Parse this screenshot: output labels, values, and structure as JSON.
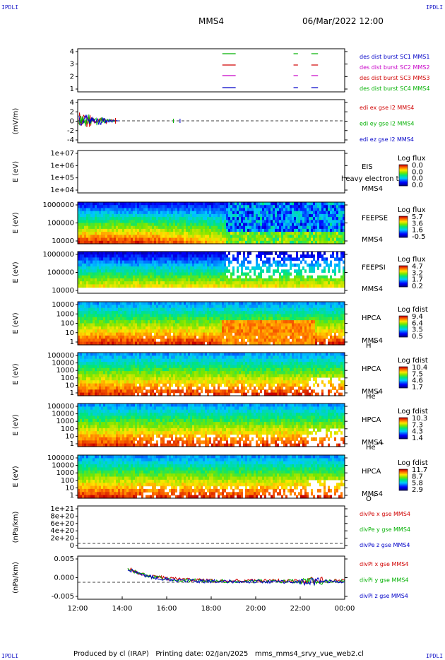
{
  "header": {
    "corner_label": "IPDLI",
    "spacecraft": "MMS4",
    "datetime": "06/Mar/2022 12:00"
  },
  "footer": {
    "text": "Produced by cl (IRAP)   Printing date: 02/Jan/2025   mms_mms4_srvy_vue_web2.cl"
  },
  "colors": {
    "red": "#d00000",
    "green": "#00b000",
    "blue": "#0000c8",
    "magenta": "#c800c8",
    "text_blue": "#0000a0"
  },
  "chart_data": {
    "type": "heatmap",
    "x_axis": {
      "ticks": [
        "12:00",
        "14:00",
        "16:00",
        "18:00",
        "20:00",
        "22:00",
        "00:00"
      ],
      "range_hours": [
        12,
        24
      ]
    },
    "panels": [
      {
        "id": "burst",
        "type": "line",
        "ylabel": "",
        "yticks": [
          "4",
          "3",
          "2",
          "1"
        ],
        "legend": [
          {
            "text": "des dist burst SC1 MMS1",
            "color": "#0000c8"
          },
          {
            "text": "des dist burst SC2 MMS2",
            "color": "#c800c8"
          },
          {
            "text": "des dist burst SC3 MMS3",
            "color": "#d00000"
          },
          {
            "text": "des dist burst SC4 MMS4",
            "color": "#00b000"
          }
        ],
        "intervals_hours": [
          [
            18.5,
            19.1
          ],
          [
            21.7,
            21.9
          ],
          [
            22.5,
            22.8
          ]
        ]
      },
      {
        "id": "edi",
        "type": "line",
        "ylabel": "(mV/m)",
        "yticks": [
          "4",
          "2",
          "0",
          "-2",
          "-4"
        ],
        "legend": [
          {
            "text": "edi ex gse l2 MMS4",
            "color": "#d00000"
          },
          {
            "text": "edi ey gse l2 MMS4",
            "color": "#00b000"
          },
          {
            "text": "edi ez gse l2 MMS4",
            "color": "#0000c8"
          }
        ]
      },
      {
        "id": "eis",
        "type": "heatmap",
        "ylabel": "E (eV)",
        "yticks": [
          "1e+07",
          "1e+06",
          "1e+05",
          "1e+04"
        ],
        "side_label": [
          "EIS",
          "MMS4"
        ],
        "overlay_text": "heavy electron to",
        "colorbar": {
          "title": "Log flux",
          "ticks": [
            "0.0",
            "0.0",
            "0.0",
            "0.0"
          ]
        }
      },
      {
        "id": "feepse",
        "type": "heatmap",
        "ylabel": "E (eV)",
        "yticks": [
          "1000000",
          "100000",
          "10000"
        ],
        "side_label": [
          "FEEPSE",
          "MMS4"
        ],
        "colorbar": {
          "title": "Log flux",
          "ticks": [
            "5.7",
            "3.6",
            "1.6",
            "-0.5"
          ]
        }
      },
      {
        "id": "feepsi",
        "type": "heatmap",
        "ylabel": "E (eV)",
        "yticks": [
          "1000000",
          "100000",
          "10000"
        ],
        "side_label": [
          "FEEPSI",
          "MMS4"
        ],
        "colorbar": {
          "title": "Log flux",
          "ticks": [
            "4.7",
            "3.2",
            "1.7",
            "0.2"
          ]
        }
      },
      {
        "id": "hpca_h",
        "type": "heatmap",
        "ylabel": "E (eV)",
        "yticks": [
          "10000",
          "1000",
          "100",
          "10",
          "1"
        ],
        "side_label": [
          "HPCA",
          "MMS4",
          "H",
          "+"
        ],
        "colorbar": {
          "title": "Log fdist",
          "ticks": [
            "9.4",
            "6.4",
            "3.5",
            "0.5"
          ]
        }
      },
      {
        "id": "hpca_he",
        "type": "heatmap",
        "ylabel": "E (eV)",
        "yticks": [
          "100000",
          "10000",
          "1000",
          "100",
          "10",
          "1"
        ],
        "side_label": [
          "HPCA",
          "MMS4",
          "He",
          "+"
        ],
        "colorbar": {
          "title": "Log fdist",
          "ticks": [
            "10.4",
            "7.5",
            "4.6",
            "1.7"
          ]
        }
      },
      {
        "id": "hpca_hepp",
        "type": "heatmap",
        "ylabel": "E (eV)",
        "yticks": [
          "100000",
          "10000",
          "1000",
          "100",
          "10",
          "1"
        ],
        "side_label": [
          "HPCA",
          "MMS4",
          "He",
          "++"
        ],
        "colorbar": {
          "title": "Log fdist",
          "ticks": [
            "10.3",
            "7.3",
            "4.3",
            "1.4"
          ]
        }
      },
      {
        "id": "hpca_o",
        "type": "heatmap",
        "ylabel": "E (eV)",
        "yticks": [
          "100000",
          "10000",
          "1000",
          "100",
          "10",
          "1"
        ],
        "side_label": [
          "HPCA",
          "MMS4",
          "O",
          "+"
        ],
        "colorbar": {
          "title": "Log fdist",
          "ticks": [
            "11.7",
            "8.7",
            "5.8",
            "2.9"
          ]
        }
      },
      {
        "id": "divpe",
        "type": "line",
        "ylabel": "(nPa/km)",
        "yticks": [
          "1e+21",
          "8e+20",
          "6e+20",
          "4e+20",
          "2e+20",
          "0"
        ],
        "legend": [
          {
            "text": "divPe x gse MMS4",
            "color": "#d00000"
          },
          {
            "text": "divPe y gse MMS4",
            "color": "#00b000"
          },
          {
            "text": "divPe z gse MMS4",
            "color": "#0000c8"
          }
        ]
      },
      {
        "id": "divpi",
        "type": "line",
        "ylabel": "(nPa/km)",
        "yticks": [
          "0.005",
          "0.000",
          "-0.005"
        ],
        "legend": [
          {
            "text": "divPi x gse MMS4",
            "color": "#d00000"
          },
          {
            "text": "divPi y gse MMS4",
            "color": "#00b000"
          },
          {
            "text": "divPi z gse MMS4",
            "color": "#0000c8"
          }
        ]
      }
    ]
  }
}
